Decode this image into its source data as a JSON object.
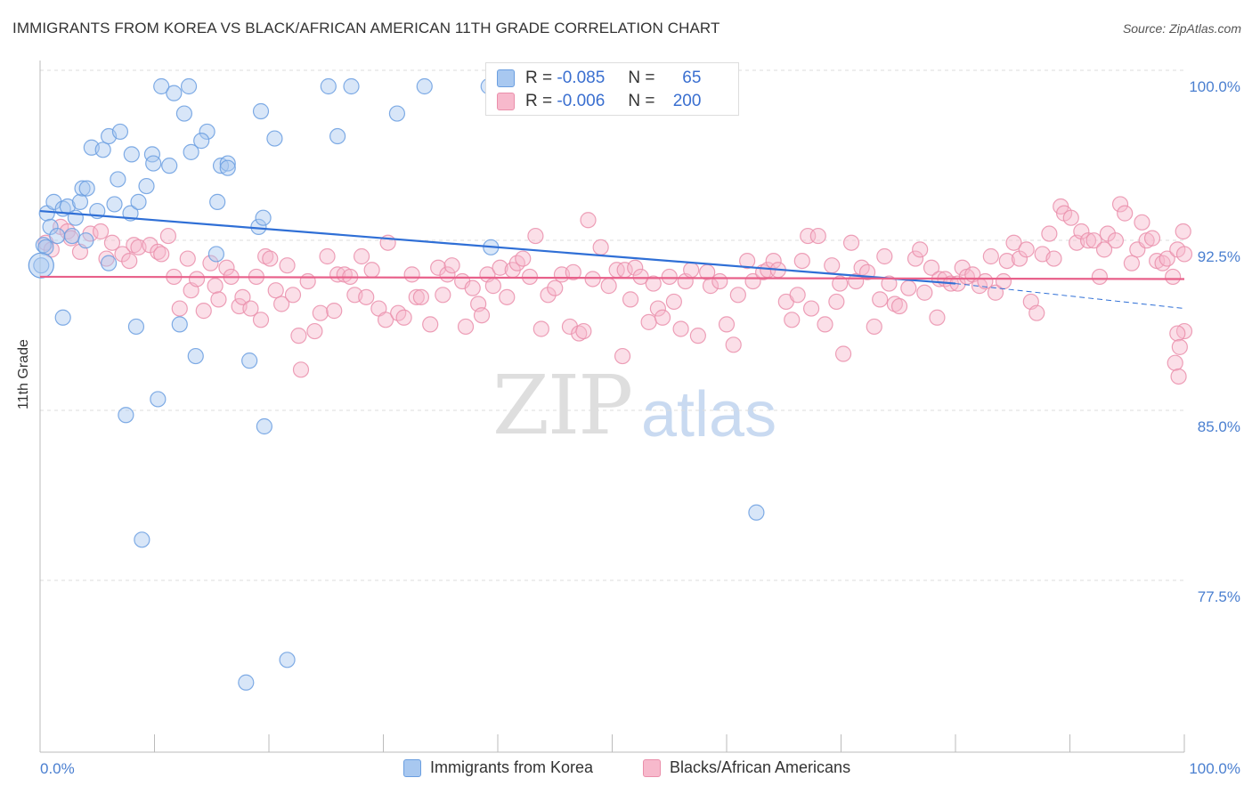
{
  "title": "IMMIGRANTS FROM KOREA VS BLACK/AFRICAN AMERICAN 11TH GRADE CORRELATION CHART",
  "source": "Source: ZipAtlas.com",
  "watermark": {
    "zip": "ZIP",
    "atlas": "atlas"
  },
  "colors": {
    "korea_fill": "#a8c8f0",
    "korea_stroke": "#6a9ee0",
    "korea_line": "#2f6fd6",
    "black_fill": "#f7b9cc",
    "black_stroke": "#ea8fab",
    "black_line": "#e8608a",
    "axis_text": "#4a7fd0",
    "grid": "#dddddd"
  },
  "legend_top": {
    "rows": [
      {
        "r_label": "R =",
        "r_value": "-0.085",
        "n_label": "N =",
        "n_value": "65"
      },
      {
        "r_label": "R =",
        "r_value": "-0.006",
        "n_label": "N =",
        "n_value": "200"
      }
    ]
  },
  "chart_data": {
    "type": "scatter",
    "title": "IMMIGRANTS FROM KOREA VS BLACK/AFRICAN AMERICAN 11TH GRADE CORRELATION CHART",
    "xlabel": "",
    "ylabel": "11th Grade",
    "xlim": [
      0,
      100
    ],
    "ylim": [
      72,
      101
    ],
    "x_tick_labels": [
      "0.0%",
      "100.0%"
    ],
    "y_ticks": [
      100.0,
      92.5,
      85.0,
      77.5
    ],
    "y_tick_labels": [
      "100.0%",
      "92.5%",
      "85.0%",
      "77.5%"
    ],
    "grid": "horizontal dashed",
    "legend_position": "bottom",
    "series": [
      {
        "name": "Immigrants from Korea",
        "trend": {
          "x": [
            0,
            80
          ],
          "y": [
            94.5,
            91.3
          ],
          "dashed_to": [
            100,
            90.2
          ]
        },
        "points": [
          [
            0.3,
            93.0
          ],
          [
            0.6,
            94.4
          ],
          [
            0.9,
            93.8
          ],
          [
            1.2,
            94.9
          ],
          [
            1.5,
            93.4
          ],
          [
            2.0,
            94.6
          ],
          [
            2.4,
            94.7
          ],
          [
            2.8,
            93.4
          ],
          [
            3.1,
            94.2
          ],
          [
            3.5,
            94.9
          ],
          [
            3.7,
            95.5
          ],
          [
            4.1,
            95.5
          ],
          [
            4.5,
            97.3
          ],
          [
            5.0,
            94.5
          ],
          [
            5.5,
            97.2
          ],
          [
            6.0,
            97.8
          ],
          [
            6.5,
            94.8
          ],
          [
            6.8,
            95.9
          ],
          [
            7.0,
            98.0
          ],
          [
            7.9,
            94.4
          ],
          [
            8.0,
            97.0
          ],
          [
            8.6,
            94.9
          ],
          [
            9.3,
            95.6
          ],
          [
            9.8,
            97.0
          ],
          [
            9.9,
            96.6
          ],
          [
            10.6,
            100.0
          ],
          [
            11.3,
            96.5
          ],
          [
            11.7,
            99.7
          ],
          [
            12.6,
            98.8
          ],
          [
            13.2,
            97.1
          ],
          [
            13.0,
            100.0
          ],
          [
            14.6,
            98.0
          ],
          [
            14.1,
            97.6
          ],
          [
            15.5,
            94.9
          ],
          [
            15.8,
            96.5
          ],
          [
            16.4,
            96.6
          ],
          [
            16.4,
            96.4
          ],
          [
            19.3,
            98.9
          ],
          [
            19.1,
            93.8
          ],
          [
            19.5,
            94.2
          ],
          [
            20.5,
            97.7
          ],
          [
            25.2,
            100.0
          ],
          [
            26.0,
            97.8
          ],
          [
            27.2,
            100.0
          ],
          [
            31.2,
            98.8
          ],
          [
            33.6,
            100.0
          ],
          [
            39.2,
            100.0
          ],
          [
            39.4,
            92.9
          ],
          [
            6.0,
            92.2
          ],
          [
            15.4,
            92.6
          ],
          [
            2.0,
            89.8
          ],
          [
            8.4,
            89.4
          ],
          [
            12.2,
            89.5
          ],
          [
            13.6,
            88.1
          ],
          [
            18.3,
            87.9
          ],
          [
            10.3,
            86.2
          ],
          [
            7.5,
            85.5
          ],
          [
            19.6,
            85.0
          ],
          [
            8.9,
            80.0
          ],
          [
            62.6,
            81.2
          ],
          [
            21.6,
            74.7
          ],
          [
            18.0,
            73.7
          ],
          [
            0.1,
            92.1
          ],
          [
            0.5,
            92.9
          ],
          [
            4.0,
            93.2
          ]
        ]
      },
      {
        "name": "Blacks/African Americans",
        "trend": {
          "x": [
            0,
            100
          ],
          "y": [
            91.6,
            91.5
          ]
        },
        "points": [
          [
            0.5,
            93.1
          ],
          [
            1.0,
            92.8
          ],
          [
            1.8,
            93.8
          ],
          [
            2.4,
            93.6
          ],
          [
            2.7,
            93.3
          ],
          [
            3.5,
            92.7
          ],
          [
            4.4,
            93.5
          ],
          [
            5.3,
            93.6
          ],
          [
            5.8,
            92.4
          ],
          [
            6.3,
            93.1
          ],
          [
            7.2,
            92.6
          ],
          [
            7.8,
            92.3
          ],
          [
            8.2,
            93.0
          ],
          [
            8.6,
            92.9
          ],
          [
            9.6,
            93.0
          ],
          [
            10.3,
            92.7
          ],
          [
            10.6,
            92.6
          ],
          [
            11.2,
            93.4
          ],
          [
            11.7,
            91.6
          ],
          [
            12.2,
            90.2
          ],
          [
            12.9,
            92.4
          ],
          [
            13.2,
            91.0
          ],
          [
            13.7,
            91.5
          ],
          [
            14.3,
            90.1
          ],
          [
            14.9,
            92.2
          ],
          [
            15.3,
            91.2
          ],
          [
            15.6,
            90.6
          ],
          [
            16.3,
            92.0
          ],
          [
            16.7,
            91.6
          ],
          [
            17.4,
            90.3
          ],
          [
            17.7,
            90.7
          ],
          [
            18.4,
            90.2
          ],
          [
            18.9,
            91.6
          ],
          [
            19.3,
            89.7
          ],
          [
            19.7,
            92.5
          ],
          [
            20.1,
            92.4
          ],
          [
            20.6,
            91.0
          ],
          [
            21.1,
            90.4
          ],
          [
            21.6,
            92.1
          ],
          [
            22.1,
            90.8
          ],
          [
            22.6,
            89.0
          ],
          [
            22.8,
            87.5
          ],
          [
            23.4,
            91.4
          ],
          [
            24.0,
            89.2
          ],
          [
            24.5,
            90.0
          ],
          [
            25.1,
            92.5
          ],
          [
            25.7,
            90.1
          ],
          [
            26.0,
            91.7
          ],
          [
            26.6,
            91.7
          ],
          [
            27.1,
            91.6
          ],
          [
            27.5,
            90.8
          ],
          [
            28.1,
            92.5
          ],
          [
            28.5,
            90.7
          ],
          [
            29.0,
            91.9
          ],
          [
            29.6,
            90.2
          ],
          [
            30.4,
            93.1
          ],
          [
            30.2,
            89.7
          ],
          [
            31.3,
            90.0
          ],
          [
            31.8,
            89.8
          ],
          [
            32.5,
            91.7
          ],
          [
            32.9,
            90.7
          ],
          [
            33.3,
            90.7
          ],
          [
            34.1,
            89.5
          ],
          [
            34.8,
            92.0
          ],
          [
            35.2,
            90.8
          ],
          [
            35.6,
            91.7
          ],
          [
            36.0,
            92.1
          ],
          [
            36.9,
            91.4
          ],
          [
            37.2,
            89.4
          ],
          [
            37.8,
            91.1
          ],
          [
            38.3,
            90.4
          ],
          [
            38.6,
            89.9
          ],
          [
            39.1,
            91.7
          ],
          [
            39.6,
            91.2
          ],
          [
            40.2,
            92.0
          ],
          [
            40.8,
            90.7
          ],
          [
            41.3,
            91.9
          ],
          [
            41.7,
            92.2
          ],
          [
            42.2,
            92.4
          ],
          [
            42.8,
            91.6
          ],
          [
            43.3,
            93.4
          ],
          [
            43.8,
            89.3
          ],
          [
            44.4,
            90.8
          ],
          [
            45.0,
            91.1
          ],
          [
            45.6,
            91.7
          ],
          [
            46.3,
            89.4
          ],
          [
            46.6,
            91.8
          ],
          [
            47.1,
            89.1
          ],
          [
            47.5,
            89.2
          ],
          [
            47.9,
            94.1
          ],
          [
            48.3,
            91.5
          ],
          [
            49.0,
            92.9
          ],
          [
            49.7,
            91.2
          ],
          [
            50.4,
            91.9
          ],
          [
            50.9,
            88.1
          ],
          [
            51.1,
            91.9
          ],
          [
            51.6,
            90.6
          ],
          [
            52.0,
            92.0
          ],
          [
            52.5,
            91.6
          ],
          [
            53.2,
            89.6
          ],
          [
            53.6,
            91.3
          ],
          [
            54.0,
            90.2
          ],
          [
            54.4,
            89.8
          ],
          [
            55.0,
            91.6
          ],
          [
            55.4,
            90.5
          ],
          [
            56.0,
            89.3
          ],
          [
            56.4,
            91.4
          ],
          [
            56.9,
            91.9
          ],
          [
            57.5,
            89.0
          ],
          [
            58.3,
            91.8
          ],
          [
            58.6,
            91.2
          ],
          [
            59.4,
            91.4
          ],
          [
            60.0,
            89.5
          ],
          [
            60.6,
            88.6
          ],
          [
            61.0,
            90.8
          ],
          [
            61.8,
            92.3
          ],
          [
            62.3,
            91.4
          ],
          [
            63.2,
            91.8
          ],
          [
            63.6,
            91.9
          ],
          [
            64.1,
            92.3
          ],
          [
            64.5,
            91.9
          ],
          [
            65.2,
            90.5
          ],
          [
            65.7,
            89.7
          ],
          [
            66.2,
            90.8
          ],
          [
            66.6,
            92.3
          ],
          [
            67.1,
            93.4
          ],
          [
            67.4,
            90.2
          ],
          [
            68.0,
            93.4
          ],
          [
            68.6,
            89.5
          ],
          [
            69.2,
            92.1
          ],
          [
            69.6,
            90.5
          ],
          [
            69.9,
            91.3
          ],
          [
            70.2,
            88.2
          ],
          [
            70.9,
            93.1
          ],
          [
            71.3,
            91.4
          ],
          [
            71.8,
            92.0
          ],
          [
            72.3,
            91.8
          ],
          [
            72.9,
            89.4
          ],
          [
            73.4,
            90.6
          ],
          [
            73.8,
            92.5
          ],
          [
            74.2,
            91.3
          ],
          [
            74.7,
            90.4
          ],
          [
            75.1,
            90.3
          ],
          [
            75.9,
            91.1
          ],
          [
            76.5,
            92.4
          ],
          [
            76.9,
            92.8
          ],
          [
            77.3,
            90.9
          ],
          [
            77.9,
            92.0
          ],
          [
            78.4,
            89.8
          ],
          [
            78.6,
            91.5
          ],
          [
            79.1,
            91.5
          ],
          [
            79.6,
            91.3
          ],
          [
            80.2,
            91.3
          ],
          [
            80.6,
            92.0
          ],
          [
            81.0,
            91.6
          ],
          [
            81.5,
            91.7
          ],
          [
            82.1,
            91.2
          ],
          [
            82.6,
            91.4
          ],
          [
            83.1,
            92.5
          ],
          [
            83.5,
            90.9
          ],
          [
            84.2,
            91.4
          ],
          [
            84.5,
            92.3
          ],
          [
            85.1,
            93.1
          ],
          [
            85.6,
            92.4
          ],
          [
            86.2,
            92.8
          ],
          [
            86.6,
            90.5
          ],
          [
            87.1,
            90.0
          ],
          [
            87.6,
            92.6
          ],
          [
            88.2,
            93.5
          ],
          [
            88.6,
            92.4
          ],
          [
            89.2,
            94.7
          ],
          [
            89.5,
            94.4
          ],
          [
            90.1,
            94.2
          ],
          [
            90.6,
            93.1
          ],
          [
            91.0,
            93.6
          ],
          [
            91.6,
            93.2
          ],
          [
            92.1,
            93.2
          ],
          [
            92.6,
            91.6
          ],
          [
            93.0,
            92.8
          ],
          [
            93.3,
            93.5
          ],
          [
            94.0,
            93.2
          ],
          [
            94.4,
            94.8
          ],
          [
            94.8,
            94.4
          ],
          [
            95.4,
            92.2
          ],
          [
            95.9,
            92.8
          ],
          [
            96.3,
            94.0
          ],
          [
            96.7,
            93.2
          ],
          [
            97.2,
            93.3
          ],
          [
            97.6,
            92.3
          ],
          [
            98.1,
            92.2
          ],
          [
            98.5,
            92.4
          ],
          [
            99.0,
            91.6
          ],
          [
            99.4,
            92.8
          ],
          [
            99.9,
            93.6
          ],
          [
            100.0,
            92.6
          ],
          [
            100.0,
            89.2
          ],
          [
            99.4,
            89.1
          ],
          [
            99.6,
            88.5
          ],
          [
            99.2,
            87.8
          ],
          [
            99.5,
            87.2
          ]
        ]
      }
    ]
  }
}
